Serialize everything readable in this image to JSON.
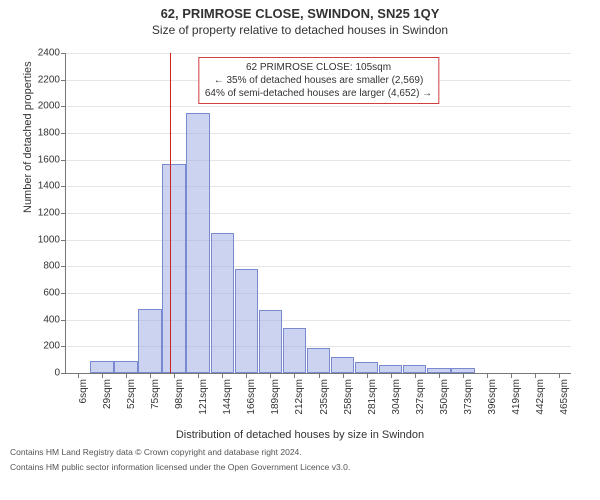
{
  "title": "62, PRIMROSE CLOSE, SWINDON, SN25 1QY",
  "subtitle": "Size of property relative to detached houses in Swindon",
  "legend": {
    "line1": "62 PRIMROSE CLOSE: 105sqm",
    "line2": "← 35% of detached houses are smaller (2,569)",
    "line3": "64% of semi-detached houses are larger (4,652) →"
  },
  "ylabel": "Number of detached properties",
  "xlabel": "Distribution of detached houses by size in Swindon",
  "footer1": "Contains HM Land Registry data © Crown copyright and database right 2024.",
  "footer2": "Contains HM public sector information licensed under the Open Government Licence v3.0.",
  "chart": {
    "type": "histogram",
    "ylim": [
      0,
      2400
    ],
    "ytick_step": 200,
    "x_categories": [
      "6sqm",
      "29sqm",
      "52sqm",
      "75sqm",
      "98sqm",
      "121sqm",
      "144sqm",
      "166sqm",
      "189sqm",
      "212sqm",
      "235sqm",
      "258sqm",
      "281sqm",
      "304sqm",
      "327sqm",
      "350sqm",
      "373sqm",
      "396sqm",
      "419sqm",
      "442sqm",
      "465sqm"
    ],
    "values": [
      0,
      90,
      90,
      480,
      1570,
      1950,
      1050,
      780,
      470,
      340,
      190,
      120,
      80,
      60,
      60,
      40,
      40,
      0,
      0,
      0,
      0
    ],
    "reference_x": 105,
    "bin_start": 6,
    "bin_width_sqm": 23,
    "bar_fill": "rgba(160,175,230,0.55)",
    "bar_stroke": "#7a8ad0",
    "grid_color": "#e5e5e5",
    "axis_color": "#777777",
    "ref_color": "#d02020",
    "legend_border": "#d04040",
    "background": "#ffffff",
    "title_fontsize": 13,
    "subtitle_fontsize": 12,
    "axis_label_fontsize": 11,
    "tick_fontsize": 10,
    "legend_fontsize": 10
  }
}
